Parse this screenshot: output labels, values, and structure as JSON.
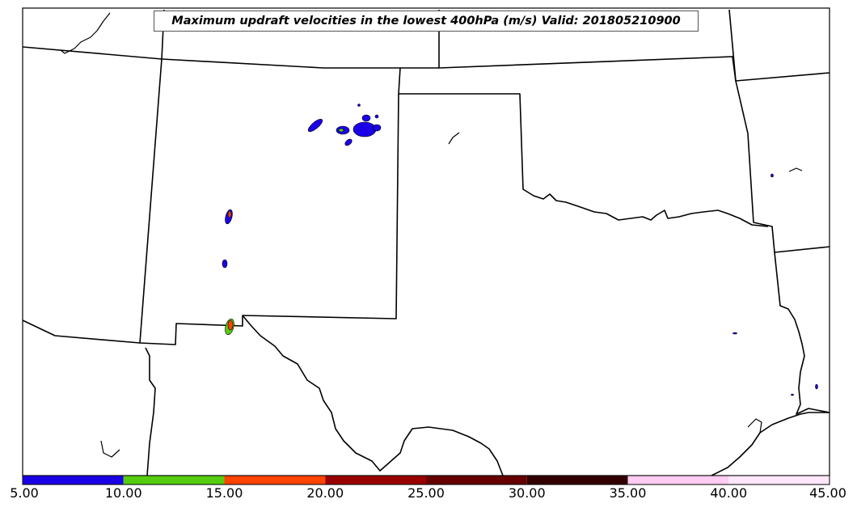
{
  "map": {
    "title": "Maximum updraft velocities in the lowest 400hPa (m/s) Valid: 201805210900",
    "variable": "maximum updraft velocity",
    "units": "m/s",
    "valid_time": "201805210900"
  },
  "colorbar": {
    "ticks": [
      "5.00",
      "10.00",
      "15.00",
      "20.00",
      "25.00",
      "30.00",
      "35.00",
      "40.00",
      "45.00"
    ],
    "bins": [
      {
        "from": 5,
        "to": 10,
        "color": "#1a00e6"
      },
      {
        "from": 10,
        "to": 15,
        "color": "#55cc11"
      },
      {
        "from": 15,
        "to": 20,
        "color": "#ff4400"
      },
      {
        "from": 20,
        "to": 25,
        "color": "#990000"
      },
      {
        "from": 25,
        "to": 30,
        "color": "#660000"
      },
      {
        "from": 30,
        "to": 35,
        "color": "#330000"
      },
      {
        "from": 35,
        "to": 40,
        "color": "#ffccf2"
      },
      {
        "from": 40,
        "to": 45,
        "color": "#ffe6fa"
      }
    ]
  },
  "colors": {
    "boundary": "#000000",
    "background": "#ffffff"
  }
}
